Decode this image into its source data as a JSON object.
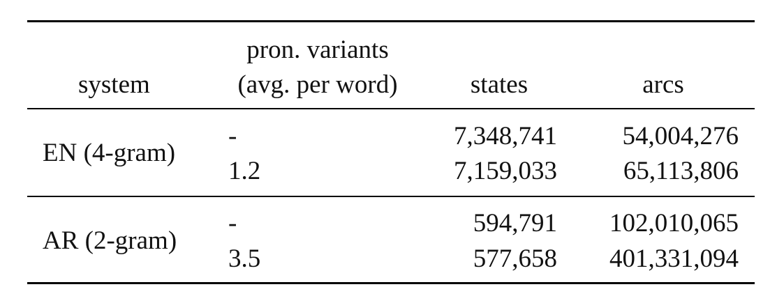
{
  "table": {
    "headers": {
      "system": "system",
      "pron_line1": "pron. variants",
      "pron_line2": "(avg. per word)",
      "states": "states",
      "arcs": "arcs"
    },
    "groups": [
      {
        "system": "EN (4-gram)",
        "rows": [
          {
            "pron": "-",
            "states": "7,348,741",
            "arcs": "54,004,276"
          },
          {
            "pron": "1.2",
            "states": "7,159,033",
            "arcs": "65,113,806"
          }
        ]
      },
      {
        "system": "AR (2-gram)",
        "rows": [
          {
            "pron": "-",
            "states": "594,791",
            "arcs": "102,010,065"
          },
          {
            "pron": "3.5",
            "states": "577,658",
            "arcs": "401,331,094"
          }
        ]
      }
    ]
  }
}
